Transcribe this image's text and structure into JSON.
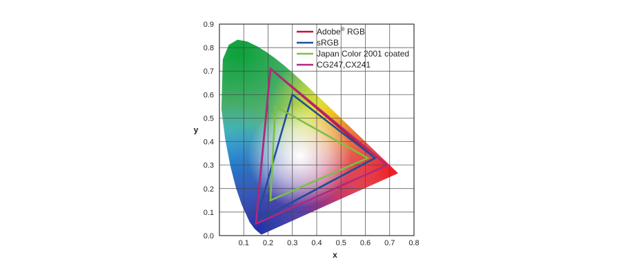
{
  "chart_data": {
    "type": "scatter",
    "xlabel": "x",
    "ylabel": "y",
    "xlim": [
      0,
      0.8
    ],
    "ylim": [
      0,
      0.9
    ],
    "xticks": [
      "0.1",
      "0.2",
      "0.3",
      "0.4",
      "0.5",
      "0.6",
      "0.7",
      "0.8"
    ],
    "yticks": [
      "0.0",
      "0.1",
      "0.2",
      "0.3",
      "0.4",
      "0.5",
      "0.6",
      "0.7",
      "0.8",
      "0.9"
    ],
    "grid": true,
    "legend_position": "top-right",
    "spectral_locus": [
      [
        0.1741,
        0.005
      ],
      [
        0.1738,
        0.0049
      ],
      [
        0.1733,
        0.0048
      ],
      [
        0.1726,
        0.0048
      ],
      [
        0.1714,
        0.0051
      ],
      [
        0.1689,
        0.0069
      ],
      [
        0.1644,
        0.0109
      ],
      [
        0.1566,
        0.0177
      ],
      [
        0.144,
        0.0297
      ],
      [
        0.1241,
        0.0578
      ],
      [
        0.0913,
        0.1327
      ],
      [
        0.0687,
        0.2007
      ],
      [
        0.0454,
        0.295
      ],
      [
        0.0235,
        0.4127
      ],
      [
        0.0082,
        0.5384
      ],
      [
        0.0139,
        0.7502
      ],
      [
        0.0389,
        0.812
      ],
      [
        0.0743,
        0.8338
      ],
      [
        0.1142,
        0.8262
      ],
      [
        0.1547,
        0.8059
      ],
      [
        0.1929,
        0.7816
      ],
      [
        0.2296,
        0.7543
      ],
      [
        0.2658,
        0.7243
      ],
      [
        0.3016,
        0.6923
      ],
      [
        0.3373,
        0.6589
      ],
      [
        0.3731,
        0.6245
      ],
      [
        0.4087,
        0.5896
      ],
      [
        0.4441,
        0.5547
      ],
      [
        0.4788,
        0.5202
      ],
      [
        0.5125,
        0.4866
      ],
      [
        0.5448,
        0.4544
      ],
      [
        0.5752,
        0.4242
      ],
      [
        0.6029,
        0.3965
      ],
      [
        0.627,
        0.3725
      ],
      [
        0.6482,
        0.3514
      ],
      [
        0.6658,
        0.334
      ],
      [
        0.6801,
        0.3197
      ],
      [
        0.6915,
        0.3083
      ],
      [
        0.7006,
        0.2993
      ],
      [
        0.7079,
        0.292
      ],
      [
        0.714,
        0.2859
      ],
      [
        0.719,
        0.2809
      ],
      [
        0.723,
        0.277
      ],
      [
        0.726,
        0.274
      ],
      [
        0.7283,
        0.2717
      ],
      [
        0.73,
        0.27
      ],
      [
        0.7311,
        0.2689
      ],
      [
        0.732,
        0.268
      ],
      [
        0.7334,
        0.2666
      ],
      [
        0.7347,
        0.2653
      ]
    ],
    "series": [
      {
        "name": "Adobe® RGB",
        "name_base": "Adobe",
        "name_sup": "®",
        "name_rest": " RGB",
        "color": "#c8102e",
        "points": [
          [
            0.64,
            0.33
          ],
          [
            0.21,
            0.71
          ],
          [
            0.15,
            0.06
          ]
        ]
      },
      {
        "name": "sRGB",
        "color": "#1f4e9c",
        "points": [
          [
            0.64,
            0.33
          ],
          [
            0.3,
            0.6
          ],
          [
            0.15,
            0.06
          ]
        ]
      },
      {
        "name": "Japan Color 2001 coated",
        "color": "#7bc043",
        "points": [
          [
            0.61,
            0.33
          ],
          [
            0.23,
            0.55
          ],
          [
            0.21,
            0.15
          ]
        ]
      },
      {
        "name": "CG247,CX241",
        "color": "#b0287e",
        "points": [
          [
            0.69,
            0.3
          ],
          [
            0.21,
            0.71
          ],
          [
            0.15,
            0.05
          ]
        ]
      }
    ]
  },
  "colors": {
    "red_corner": "#ee1c25",
    "green_corner": "#0aa13a",
    "blue_corner": "#2030a8",
    "white_point": "#ffffff",
    "yellow": "#f6ec1a",
    "cyan": "#26b0e8",
    "magenta": "#b040a8"
  }
}
